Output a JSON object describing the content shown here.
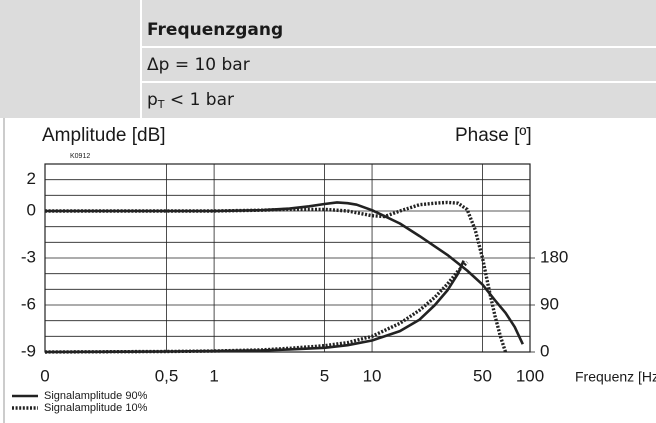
{
  "header": {
    "title": "Frequenzgang",
    "line1": "Δp = 10 bar",
    "line2_main": "p",
    "line2_sub": "T",
    "line2_rest": " < 1 bar"
  },
  "chart_data": {
    "type": "line",
    "y_label": "Amplitude [dB]",
    "y2_label": "Phase [º]",
    "x_label": "Frequenz [Hz]",
    "code": "K0912",
    "x_scale": "log",
    "xlim": [
      0.085,
      100
    ],
    "x_origin_label": "0",
    "xticks": [
      {
        "value": 0.5,
        "label": "0,5"
      },
      1,
      5,
      10,
      50,
      100
    ],
    "ylim": [
      -9,
      3
    ],
    "yticks": [
      2,
      0,
      -3,
      -6,
      -9
    ],
    "y_minor_ticks": [
      3,
      1,
      -1,
      -2,
      -4,
      -5,
      -7,
      -8
    ],
    "y2lim": [
      0,
      360
    ],
    "y2ticks": [
      180,
      90,
      0
    ],
    "grid": true,
    "legend_position": "bottom-left",
    "legend": [
      {
        "name": "Signalamplitude 90%",
        "dash": "solid"
      },
      {
        "name": "Signalamplitude 10%",
        "dash": "dotted"
      }
    ],
    "series": [
      {
        "legend": 0,
        "color": "#222222",
        "axis": "y",
        "x": [
          0.085,
          0.5,
          1,
          2,
          3,
          4,
          5,
          6,
          7,
          8,
          10,
          15,
          20,
          30,
          40,
          50,
          60,
          70,
          80,
          90
        ],
        "values": [
          0,
          0,
          0,
          0.05,
          0.15,
          0.3,
          0.45,
          0.55,
          0.5,
          0.4,
          0.05,
          -0.8,
          -1.6,
          -2.8,
          -3.8,
          -4.7,
          -5.7,
          -6.5,
          -7.4,
          -8.5
        ]
      },
      {
        "legend": 1,
        "color": "#222222",
        "axis": "y",
        "x": [
          0.085,
          0.5,
          1,
          2,
          3,
          5,
          7,
          10,
          12,
          15,
          20,
          25,
          30,
          35,
          40,
          45,
          50,
          55,
          60,
          65,
          70
        ],
        "values": [
          0,
          0,
          0,
          0.05,
          0.1,
          0.1,
          0,
          -0.3,
          -0.35,
          0,
          0.4,
          0.5,
          0.55,
          0.5,
          0.1,
          -1.2,
          -3,
          -5,
          -6.7,
          -8,
          -9
        ]
      },
      {
        "legend": 0,
        "color": "#222222",
        "axis": "y2",
        "x": [
          0.085,
          0.5,
          1,
          2,
          3,
          5,
          7,
          10,
          15,
          20,
          25,
          30,
          35,
          38
        ],
        "values": [
          0,
          1,
          2,
          3,
          5,
          8,
          13,
          22,
          40,
          62,
          90,
          118,
          150,
          175
        ]
      },
      {
        "legend": 1,
        "color": "#222222",
        "axis": "y2",
        "x": [
          0.085,
          0.5,
          1,
          2,
          3,
          5,
          7,
          10,
          15,
          20,
          25,
          30,
          35,
          40
        ],
        "values": [
          0,
          1,
          2,
          4,
          7,
          12,
          18,
          30,
          55,
          80,
          105,
          130,
          155,
          172
        ]
      }
    ]
  }
}
